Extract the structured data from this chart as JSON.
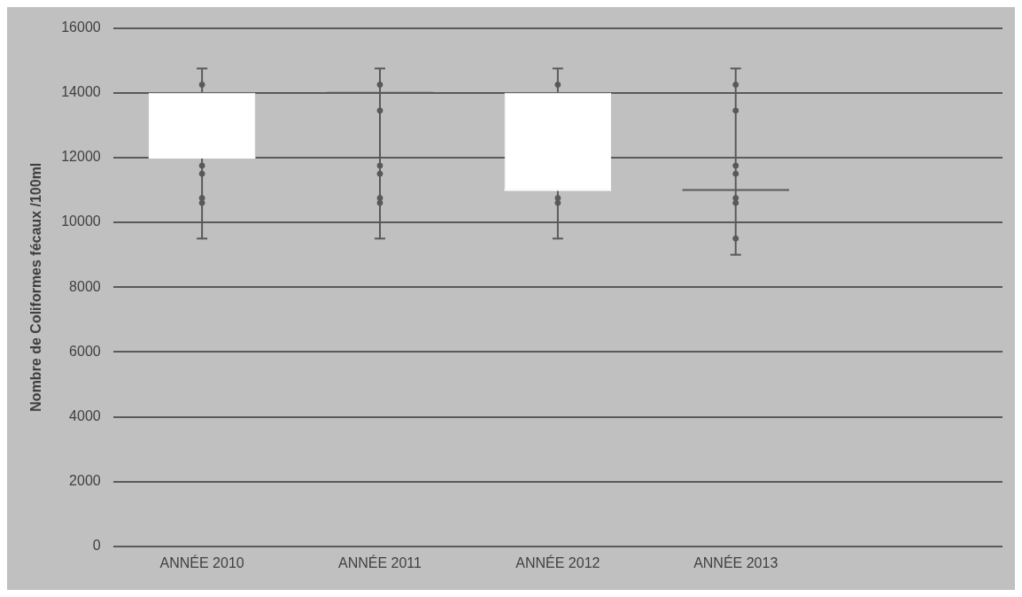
{
  "chart_data": {
    "type": "box",
    "ylabel": "Nombre de Coliformes fécaux /100ml",
    "categories": [
      "ANNÉE 2010",
      "ANNÉE 2011",
      "ANNÉE 2012",
      "ANNÉE 2013",
      null
    ],
    "series": [
      {
        "colors": [
          "#ffffff",
          "#595959",
          "#ffffff",
          "#595959",
          null
        ],
        "boxes": [
          {
            "low": 9500,
            "q1": 12000,
            "median": 12000,
            "q3": 14000,
            "high": 14750,
            "outliers": [
              14250,
              11750,
              11500,
              10750,
              10600
            ]
          },
          {
            "low": 9500,
            "q1": 14000,
            "median": 14000,
            "q3": 14000,
            "high": 14750,
            "outliers": [
              14250,
              13450,
              11750,
              11500,
              10750,
              10600
            ]
          },
          {
            "low": 9500,
            "q1": 11000,
            "median": 11000,
            "q3": 14000,
            "high": 14750,
            "outliers": [
              14250,
              10750,
              10600
            ]
          },
          {
            "low": 9000,
            "q1": 11000,
            "median": 11000,
            "q3": 11000,
            "high": 14750,
            "outliers": [
              14250,
              13450,
              11750,
              11500,
              10750,
              10600,
              9500
            ]
          },
          null
        ]
      }
    ],
    "ylim": [
      0,
      16000
    ],
    "yticks": [
      0,
      2000,
      4000,
      6000,
      8000,
      10000,
      12000,
      14000,
      16000
    ],
    "grid": "y",
    "legend": false
  }
}
